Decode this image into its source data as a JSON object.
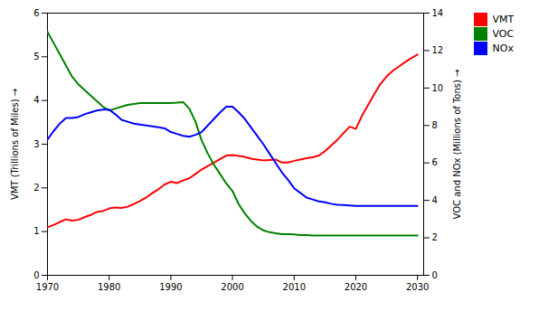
{
  "chart_data": {
    "type": "line",
    "x": [
      1970,
      1971,
      1972,
      1973,
      1974,
      1975,
      1976,
      1977,
      1978,
      1979,
      1980,
      1981,
      1982,
      1983,
      1984,
      1985,
      1986,
      1987,
      1988,
      1989,
      1990,
      1991,
      1992,
      1993,
      1994,
      1995,
      1996,
      1997,
      1998,
      1999,
      2000,
      2001,
      2002,
      2003,
      2004,
      2005,
      2006,
      2007,
      2008,
      2009,
      2010,
      2011,
      2012,
      2013,
      2014,
      2015,
      2016,
      2017,
      2018,
      2019,
      2020,
      2021,
      2022,
      2023,
      2024,
      2025,
      2026,
      2027,
      2028,
      2029,
      2030
    ],
    "series": [
      {
        "name": "VMT",
        "color": "#ff0000",
        "values": [
          1.1,
          1.15,
          1.22,
          1.28,
          1.25,
          1.27,
          1.33,
          1.38,
          1.45,
          1.47,
          1.53,
          1.55,
          1.54,
          1.57,
          1.63,
          1.7,
          1.78,
          1.88,
          1.97,
          2.08,
          2.14,
          2.11,
          2.17,
          2.22,
          2.32,
          2.42,
          2.5,
          2.58,
          2.66,
          2.74,
          2.75,
          2.73,
          2.71,
          2.67,
          2.65,
          2.63,
          2.64,
          2.65,
          2.58,
          2.58,
          2.62,
          2.65,
          2.68,
          2.7,
          2.74,
          2.84,
          2.97,
          3.1,
          3.25,
          3.4,
          3.35,
          3.65,
          3.9,
          4.15,
          4.38,
          4.55,
          4.68,
          4.78,
          4.88,
          4.97,
          5.05
        ]
      },
      {
        "name": "VOC",
        "color": "#008000",
        "axis": "y2",
        "values": [
          13.0,
          12.4,
          11.8,
          11.2,
          10.6,
          10.2,
          9.9,
          9.6,
          9.3,
          9.0,
          8.8,
          8.9,
          9.0,
          9.1,
          9.15,
          9.2,
          9.2,
          9.2,
          9.2,
          9.2,
          9.2,
          9.22,
          9.25,
          8.9,
          8.2,
          7.2,
          6.5,
          5.9,
          5.4,
          4.9,
          4.5,
          3.8,
          3.3,
          2.9,
          2.6,
          2.4,
          2.3,
          2.25,
          2.2,
          2.2,
          2.18,
          2.15,
          2.15,
          2.13,
          2.12,
          2.12,
          2.12,
          2.12,
          2.12,
          2.12,
          2.12,
          2.12,
          2.12,
          2.12,
          2.12,
          2.12,
          2.12,
          2.12,
          2.12,
          2.12,
          2.12
        ]
      },
      {
        "name": "NOx",
        "color": "#0000ff",
        "axis": "y2",
        "values": [
          7.25,
          7.7,
          8.1,
          8.4,
          8.4,
          8.45,
          8.6,
          8.7,
          8.8,
          8.85,
          8.85,
          8.6,
          8.3,
          8.2,
          8.1,
          8.05,
          8.0,
          7.95,
          7.9,
          7.85,
          7.65,
          7.55,
          7.45,
          7.4,
          7.5,
          7.65,
          8.0,
          8.35,
          8.7,
          9.0,
          9.0,
          8.7,
          8.35,
          7.9,
          7.45,
          7.0,
          6.5,
          6.0,
          5.5,
          5.1,
          4.65,
          4.4,
          4.15,
          4.05,
          3.95,
          3.9,
          3.82,
          3.77,
          3.75,
          3.73,
          3.7,
          3.7,
          3.7,
          3.7,
          3.7,
          3.7,
          3.7,
          3.7,
          3.7,
          3.7,
          3.7
        ]
      }
    ],
    "ylabel": "VMT (Trillions of Miles)",
    "y2label": "VOC and NOx (Millions of Tons)",
    "xlim": [
      1970,
      2031
    ],
    "xticks": [
      1970,
      1980,
      1990,
      2000,
      2010,
      2020,
      2030
    ],
    "ylim": [
      0,
      6
    ],
    "yticks": [
      0,
      1,
      2,
      3,
      4,
      5,
      6
    ],
    "y2lim": [
      0,
      14
    ],
    "y2ticks": [
      0,
      2,
      4,
      6,
      8,
      10,
      12,
      14
    ],
    "grid": false,
    "legend": "right"
  }
}
